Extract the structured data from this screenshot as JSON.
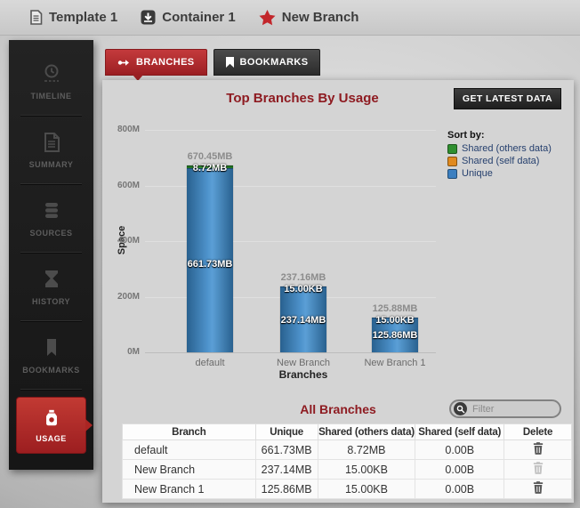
{
  "breadcrumb": {
    "items": [
      {
        "label": "Template 1",
        "icon": "template-document-icon"
      },
      {
        "label": "Container 1",
        "icon": "container-icon"
      },
      {
        "label": "New Branch",
        "icon": "branch-star-icon"
      }
    ]
  },
  "sidebar": {
    "items": [
      {
        "label": "TIMELINE",
        "icon": "timeline-clock-icon",
        "active": false
      },
      {
        "label": "SUMMARY",
        "icon": "summary-document-icon",
        "active": false
      },
      {
        "label": "SOURCES",
        "icon": "sources-database-icon",
        "active": false
      },
      {
        "label": "HISTORY",
        "icon": "history-hourglass-icon",
        "active": false
      },
      {
        "label": "BOOKMARKS",
        "icon": "bookmarks-icon",
        "active": false
      },
      {
        "label": "USAGE",
        "icon": "usage-jar-icon",
        "active": true
      }
    ]
  },
  "tabs": [
    {
      "label": "BRANCHES",
      "icon": "branch-icon",
      "active": true
    },
    {
      "label": "BOOKMARKS",
      "icon": "bookmark-icon",
      "active": false
    }
  ],
  "buttons": {
    "get_latest_data": "GET LATEST DATA"
  },
  "chart_data": {
    "type": "bar",
    "stacked": true,
    "title": "Top Branches By Usage",
    "xlabel": "Branches",
    "ylabel": "Space",
    "ylim": [
      0,
      800
    ],
    "unit": "MB",
    "grid": true,
    "categories": [
      "default",
      "New Branch",
      "New Branch 1"
    ],
    "yticks": [
      {
        "value": 0,
        "label": "0M"
      },
      {
        "value": 200,
        "label": "200M"
      },
      {
        "value": 400,
        "label": "400M"
      },
      {
        "value": 600,
        "label": "600M"
      },
      {
        "value": 800,
        "label": "800M"
      }
    ],
    "totals_mb": [
      670.45,
      237.16,
      125.88
    ],
    "total_labels": [
      "670.45MB",
      "237.16MB",
      "125.88MB"
    ],
    "series": [
      {
        "name": "Unique",
        "color": "#3b7fc0",
        "values_mb": [
          661.73,
          237.14,
          125.86
        ],
        "labels": [
          "661.73MB",
          "237.14MB",
          "125.86MB"
        ]
      },
      {
        "name": "Shared (others data)",
        "color": "#2f8f2f",
        "values_mb": [
          8.72,
          0.015,
          0.015
        ],
        "labels": [
          "8.72MB",
          "15.00KB",
          "15.00KB"
        ]
      },
      {
        "name": "Shared (self data)",
        "color": "#e08a1f",
        "values_mb": [
          0,
          0,
          0
        ],
        "labels": [
          "0.00B",
          "0.00B",
          "0.00B"
        ]
      }
    ],
    "legend_title": "Sort by:",
    "legend_position": "right",
    "legend": [
      {
        "label": "Shared (others data)",
        "color": "#2f8f2f"
      },
      {
        "label": "Shared (self data)",
        "color": "#e08a1f"
      },
      {
        "label": "Unique",
        "color": "#3b7fc0"
      }
    ]
  },
  "all_branches": {
    "title": "All Branches",
    "filter_placeholder": "Filter",
    "columns": [
      "Branch",
      "Unique",
      "Shared (others data)",
      "Shared (self data)",
      "Delete"
    ],
    "rows": [
      {
        "branch": "default",
        "unique": "661.73MB",
        "shared_others": "8.72MB",
        "shared_self": "0.00B",
        "delete_enabled": true
      },
      {
        "branch": "New Branch",
        "unique": "237.14MB",
        "shared_others": "15.00KB",
        "shared_self": "0.00B",
        "delete_enabled": false
      },
      {
        "branch": "New Branch 1",
        "unique": "125.86MB",
        "shared_others": "15.00KB",
        "shared_self": "0.00B",
        "delete_enabled": true
      }
    ]
  },
  "colors": {
    "accent_red": "#b02a28",
    "title_red": "#8e1b21",
    "bar_blue": "#3b7fc0",
    "bar_green": "#2f8f2f",
    "legend_orange": "#e08a1f",
    "sidebar_bg": "#1a1a1a",
    "panel_bg": "#d4d4d4"
  }
}
